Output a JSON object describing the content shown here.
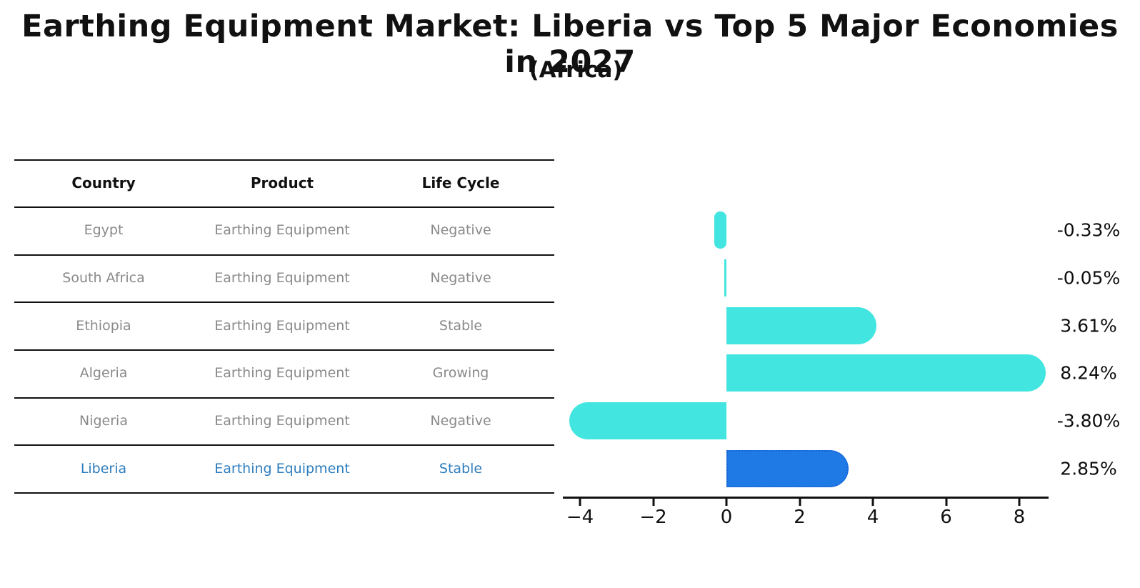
{
  "title": "Earthing Equipment Market: Liberia vs Top 5 Major Economies in 2027",
  "subtitle": "(Africa)",
  "colors": {
    "bar_default": "#42E5DF",
    "bar_highlight_fill": "#207AE6",
    "bar_highlight_border": "#1764D2",
    "table_text": "#8a8a8a",
    "table_text_highlight": "#2E7DBE",
    "heading_text": "#111111",
    "axis": "#111111"
  },
  "table": {
    "columns": [
      "Country",
      "Product",
      "Life Cycle"
    ],
    "rows": [
      {
        "country": "Egypt",
        "product": "Earthing Equipment",
        "life_cycle": "Negative",
        "highlight": false
      },
      {
        "country": "South Africa",
        "product": "Earthing Equipment",
        "life_cycle": "Negative",
        "highlight": false
      },
      {
        "country": "Ethiopia",
        "product": "Earthing Equipment",
        "life_cycle": "Stable",
        "highlight": false
      },
      {
        "country": "Algeria",
        "product": "Earthing Equipment",
        "life_cycle": "Growing",
        "highlight": false
      },
      {
        "country": "Nigeria",
        "product": "Earthing Equipment",
        "life_cycle": "Negative",
        "highlight": false
      },
      {
        "country": "Liberia",
        "product": "Earthing Equipment",
        "life_cycle": "Stable",
        "highlight": true
      }
    ]
  },
  "chart_data": {
    "type": "bar",
    "orientation": "horizontal",
    "title": "Earthing Equipment Market: Liberia vs Top 5 Major Economies in 2027",
    "subtitle": "(Africa)",
    "categories": [
      "Egypt",
      "South Africa",
      "Ethiopia",
      "Algeria",
      "Nigeria",
      "Liberia"
    ],
    "values": [
      -0.33,
      -0.05,
      3.61,
      8.24,
      -3.8,
      2.85
    ],
    "value_labels": [
      "-0.33%",
      "-0.05%",
      "3.61%",
      "8.24%",
      "-3.80%",
      "2.85%"
    ],
    "highlight_index": 5,
    "x_ticks": [
      -4,
      -2,
      0,
      2,
      4,
      6,
      8
    ],
    "x_tick_labels": [
      "−4",
      "−2",
      "0",
      "2",
      "4",
      "6",
      "8"
    ],
    "xlim": [
      -4.47,
      8.8
    ],
    "grid": false,
    "legend": false,
    "xlabel": "",
    "ylabel": ""
  }
}
